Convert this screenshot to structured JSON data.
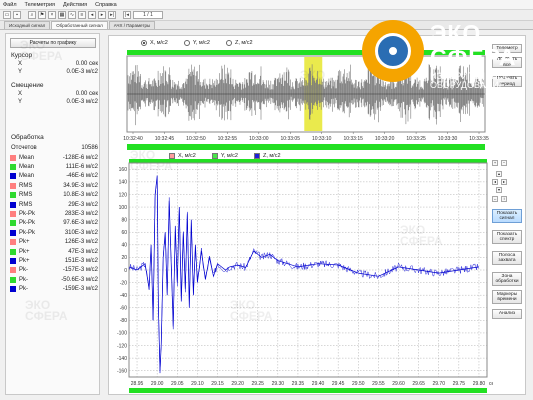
{
  "menu": [
    "Файл",
    "Телеметрия",
    "Действия",
    "Справка"
  ],
  "toolbar": {
    "counter": "1 / 1"
  },
  "tabs": [
    {
      "label": "Исходный сигнал",
      "active": false
    },
    {
      "label": "Обработанный сигнал",
      "active": true
    },
    {
      "label": "АЧХ / Параметры",
      "active": false
    }
  ],
  "left_panel": {
    "calc_button": "Расчеты по графику",
    "cursor": {
      "title": "Курсор",
      "x_label": "X",
      "x_value": "0.00 сек",
      "y_label": "Y",
      "y_value": "0.0E-3 м/с2"
    },
    "offset": {
      "title": "Смещение",
      "x_label": "X",
      "x_value": "0.00 сек",
      "y_label": "Y",
      "y_value": "0.0E-3 м/с2"
    },
    "processing": {
      "title": "Обработка",
      "count_label": "Отсчетов",
      "count_value": "10586",
      "rows": [
        {
          "label": "Mean",
          "value": "-128E-6 м/с2",
          "color": "#ff7f7f"
        },
        {
          "label": "Mean",
          "value": "111E-6 м/с2",
          "color": "#2fd92f"
        },
        {
          "label": "Mean",
          "value": "-46E-6 м/с2",
          "color": "#0000d0"
        },
        {
          "label": "RMS",
          "value": "34.9E-3 м/с2",
          "color": "#ff7f7f"
        },
        {
          "label": "RMS",
          "value": "10.8E-3 м/с2",
          "color": "#2fd92f"
        },
        {
          "label": "RMS",
          "value": "29E-3 м/с2",
          "color": "#0000d0"
        },
        {
          "label": "Pk-Pk",
          "value": "283E-3 м/с2",
          "color": "#ff7f7f"
        },
        {
          "label": "Pk-Pk",
          "value": "97.6E-3 м/с2",
          "color": "#2fd92f"
        },
        {
          "label": "Pk-Pk",
          "value": "310E-3 м/с2",
          "color": "#0000d0"
        },
        {
          "label": "Pk+",
          "value": "126E-3 м/с2",
          "color": "#ff7f7f"
        },
        {
          "label": "Pk+",
          "value": "47E-3 м/с2",
          "color": "#2fd92f"
        },
        {
          "label": "Pk+",
          "value": "151E-3 м/с2",
          "color": "#0000d0"
        },
        {
          "label": "Pk-",
          "value": "-157E-3 м/с2",
          "color": "#ff7f7f"
        },
        {
          "label": "Pk-",
          "value": "-50.6E-3 м/с2",
          "color": "#2fd92f"
        },
        {
          "label": "Pk-",
          "value": "-159E-3 м/с2",
          "color": "#0000d0"
        }
      ]
    }
  },
  "top_chart": {
    "legend": [
      "X, м/с2",
      "Y, м/с2",
      "Z, м/с2"
    ],
    "selected": 0,
    "x_ticks": [
      "10:32:40",
      "10:32:45",
      "10:32:50",
      "10:32:55",
      "10:33:00",
      "10:33:05",
      "10:33:10",
      "10:33:15",
      "10:33:20",
      "10:33:25",
      "10:33:30",
      "10:33:35"
    ],
    "highlight_range": [
      "10:33:06",
      "10:33:09"
    ]
  },
  "bottom_chart": {
    "ylabel": "E-3, м/с2",
    "legend": [
      "X, м/с2",
      "Y, м/с2",
      "Z, м/с2"
    ],
    "legend_colors": [
      "#ff7f7f",
      "#2fd92f",
      "#0000d0"
    ],
    "legend_checked": [
      false,
      false,
      true
    ],
    "y_ticks": [
      160,
      140,
      120,
      100,
      80,
      60,
      40,
      20,
      0,
      -20,
      -40,
      -60,
      -80,
      -100,
      -120,
      -140,
      -160
    ],
    "x_ticks": [
      "28.95",
      "29.00",
      "29.05",
      "29.10",
      "29.15",
      "29.20",
      "29.25",
      "29.30",
      "29.35",
      "29.40",
      "29.45",
      "29.50",
      "29.55",
      "29.60",
      "29.65",
      "29.70",
      "29.75",
      "29.80"
    ],
    "x_unit": "сек"
  },
  "chart_data": {
    "type": "line",
    "title": "",
    "xlabel": "сек",
    "ylabel": "E-3, м/с2",
    "xlim": [
      28.93,
      29.82
    ],
    "ylim": [
      -170,
      170
    ],
    "series": [
      {
        "name": "Z, м/с2",
        "color": "#0000d0",
        "x": [
          28.93,
          28.95,
          28.97,
          28.98,
          28.985,
          28.99,
          28.995,
          29.0,
          29.003,
          29.007,
          29.01,
          29.015,
          29.02,
          29.025,
          29.03,
          29.035,
          29.04,
          29.045,
          29.05,
          29.055,
          29.06,
          29.065,
          29.07,
          29.075,
          29.08,
          29.085,
          29.09,
          29.095,
          29.1,
          29.11,
          29.12,
          29.13,
          29.14,
          29.15,
          29.16,
          29.17,
          29.18,
          29.2,
          29.22,
          29.24,
          29.26,
          29.28,
          29.3,
          29.35,
          29.4,
          29.45,
          29.5,
          29.55,
          29.6,
          29.65,
          29.7,
          29.75,
          29.8
        ],
        "y": [
          5,
          0,
          10,
          -30,
          40,
          -80,
          120,
          150,
          -60,
          -160,
          -120,
          20,
          60,
          -40,
          110,
          10,
          -90,
          70,
          -20,
          100,
          -50,
          60,
          -30,
          90,
          -60,
          80,
          -40,
          40,
          -20,
          30,
          -15,
          20,
          -10,
          10,
          5,
          0,
          5,
          8,
          4,
          30,
          20,
          25,
          15,
          5,
          10,
          8,
          -5,
          -10,
          5,
          0,
          -5,
          0,
          5
        ]
      }
    ]
  }
}
